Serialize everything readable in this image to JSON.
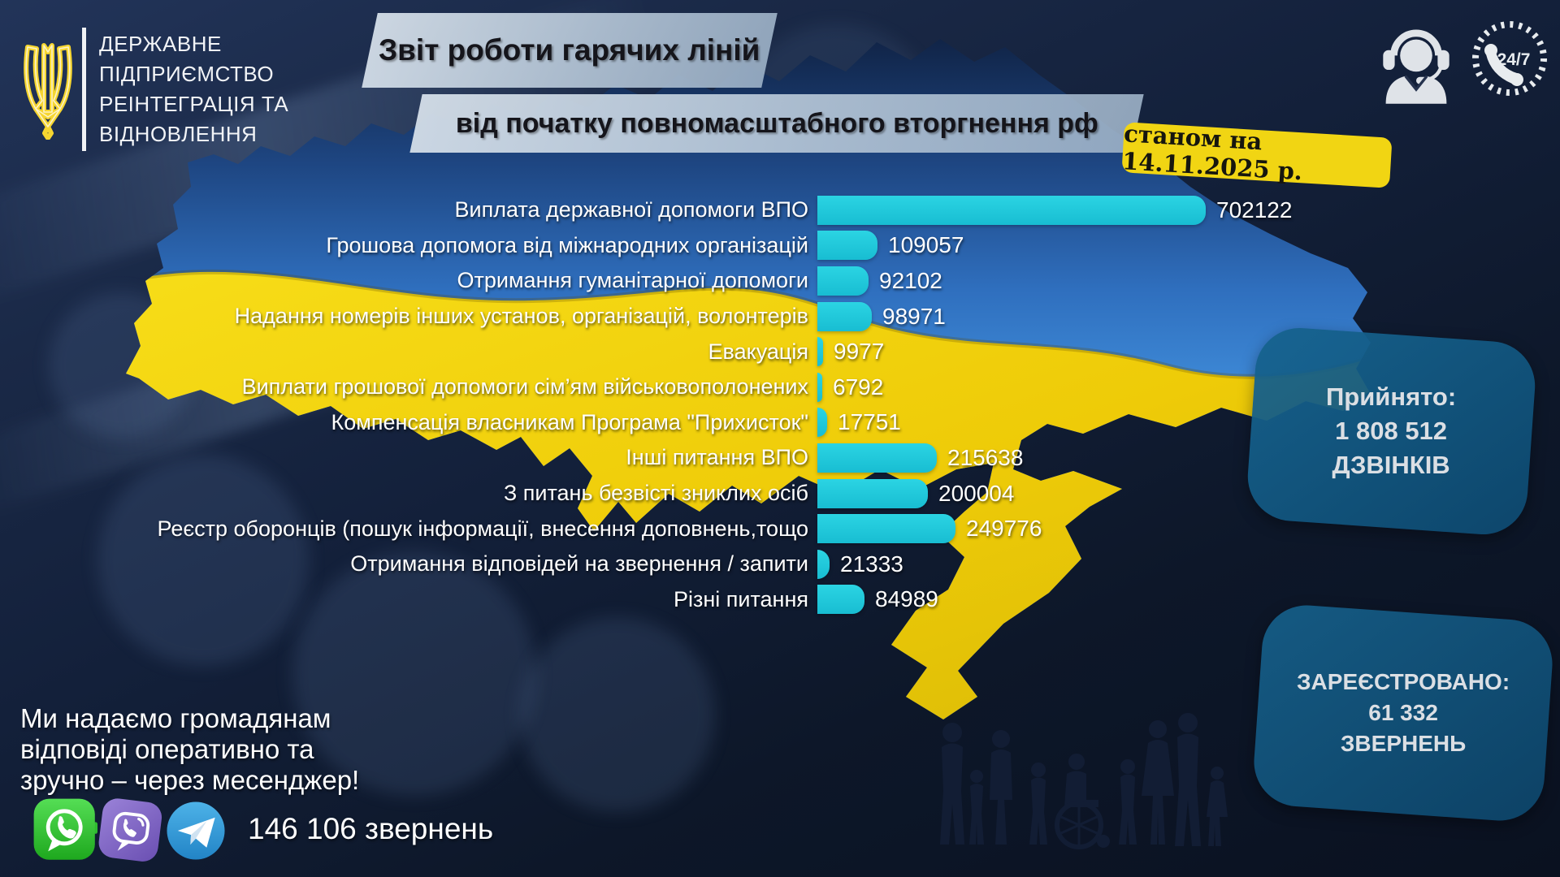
{
  "org": {
    "lines": [
      "ДЕРЖАВНЕ",
      "ПІДПРИЄМСТВО",
      "РЕІНТЕГРАЦІЯ ТА",
      "ВІДНОВЛЕННЯ"
    ]
  },
  "header": {
    "title_line1": "Звіт роботи гарячих ліній",
    "title_line2": "від початку повномасштабного вторгнення рф",
    "date_badge": "станом на 14.11.2025 р.",
    "badge_247": "24/7"
  },
  "chart_data": {
    "type": "bar",
    "orientation": "horizontal",
    "bar_color": "#1cc6d7",
    "value_label_color": "#ffffff",
    "max_value": 702122,
    "categories": [
      "Виплата державної допомоги ВПО",
      "Грошова допомога від міжнародних організацій",
      "Отримання гуманітарної допомоги",
      "Надання номерів інших установ, організацій, волонтерів",
      "Евакуація",
      "Виплати грошової допомоги сім’ям військовополонених",
      "Компенсація власникам Програма \"Прихисток\"",
      "Інші питання ВПО",
      "З питань безвісті зниклих осіб",
      "Реєстр оборонців (пошук інформації, внесення доповнень,тощо",
      "Отримання відповідей на звернення / запити",
      "Різні питання"
    ],
    "values": [
      702122,
      109057,
      92102,
      98971,
      9977,
      6792,
      17751,
      215638,
      200004,
      249776,
      21333,
      84989
    ]
  },
  "stats": {
    "accepted": {
      "label": "Прийнято:",
      "value": "1 808 512",
      "unit": "ДЗВІНКІВ"
    },
    "registered": {
      "label": "ЗАРЕЄСТРОВАНО:",
      "value": "61 332",
      "unit": "ЗВЕРНЕНЬ"
    }
  },
  "messengers": {
    "line1": "Ми надаємо громадянам",
    "line2": "відповіді оперативно та",
    "line3": "зручно – через месенджер!",
    "count": "146 106 звернень",
    "apps": [
      "WhatsApp",
      "Viber",
      "Telegram"
    ]
  },
  "colors": {
    "flag_blue": "#3f88d8",
    "flag_yellow": "#f2d410",
    "bar_cyan": "#1cc6d7",
    "badge_yellow": "#f1d513",
    "stat_box_blue": "#14608c",
    "background_navy": "#0d1729"
  }
}
